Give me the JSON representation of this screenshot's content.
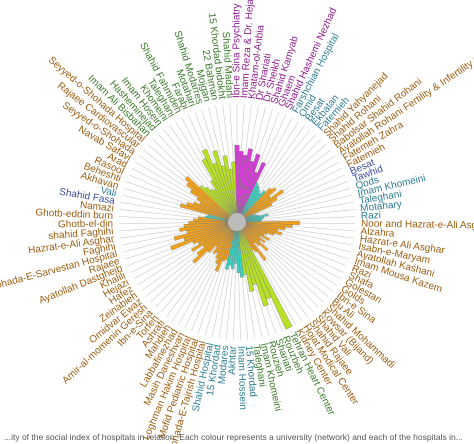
{
  "chart_data": {
    "type": "radial-bar",
    "title": "",
    "grid": true,
    "colors": {
      "Tehran": "#9c5d10",
      "Iran": "#3b7a2a",
      "Shahid Beheshti": "#8d1b8d",
      "Group D": "#2d7e93",
      "Group E": "#3a4d9a"
    },
    "fills": {
      "Tehran": "#f1a11a",
      "Iran": "#b8e027",
      "Shahid Beheshti": "#d63bd6",
      "Group D": "#39d5c4",
      "Group E": "#39d5c4"
    },
    "categories": [
      {
        "label": "Ibn-e Sina Psychiatry",
        "group": "Shahid Beheshti",
        "value": 60
      },
      {
        "label": "Imam Reza & Dr. Hejazi",
        "group": "Shahid Beheshti",
        "value": 55
      },
      {
        "label": "Khatam-ol-Anbia",
        "group": "Shahid Beheshti",
        "value": 52
      },
      {
        "label": "Dr Shariati",
        "group": "Shahid Beheshti",
        "value": 58
      },
      {
        "label": "Dr Sheikh",
        "group": "Shahid Beheshti",
        "value": 48
      },
      {
        "label": "Shahid Kamyab",
        "group": "Shahid Beheshti",
        "value": 55
      },
      {
        "label": "Ghaem",
        "group": "Shahid Beheshti",
        "value": 40
      },
      {
        "label": "Shahid Hashemi Nezhad",
        "group": "Shahid Beheshti",
        "value": 50
      },
      {
        "label": "Farshchian Hospital",
        "group": "Group D",
        "value": 32
      },
      {
        "label": "Omid",
        "group": "Group D",
        "value": 30
      },
      {
        "label": "Besat",
        "group": "Group D",
        "value": 28
      },
      {
        "label": "Ekbatan",
        "group": "Group D",
        "value": 26
      },
      {
        "label": "Fatemieh",
        "group": "Group D",
        "value": 30
      },
      {
        "label": "Shahid Yahyanejad",
        "group": "Tehran",
        "value": 35
      },
      {
        "label": "Shahid Rohani",
        "group": "Tehran",
        "value": 38
      },
      {
        "label": "Babolsar Shahid Rohani",
        "group": "Tehran",
        "value": 30
      },
      {
        "label": "Ayatollah Rohani Fertility & Infertility Center",
        "group": "Tehran",
        "value": 42
      },
      {
        "label": "Fatemeh Zahra",
        "group": "Tehran",
        "value": 34
      },
      {
        "label": "Fatemieh",
        "group": "Tehran",
        "value": 28
      },
      {
        "label": "Besat",
        "group": "Group E",
        "value": 10
      },
      {
        "label": "Tawhid",
        "group": "Group E",
        "value": 12
      },
      {
        "label": "Qods",
        "group": "Group D",
        "value": 14
      },
      {
        "label": "Imam Khomeini",
        "group": "Group D",
        "value": 22
      },
      {
        "label": "Taleghani",
        "group": "Group D",
        "value": 18
      },
      {
        "label": "Motahary",
        "group": "Group D",
        "value": 16
      },
      {
        "label": "Razi",
        "group": "Group D",
        "value": 15
      },
      {
        "label": "Noor and Hazrat-e-Ali Asghar",
        "group": "Tehran",
        "value": 48
      },
      {
        "label": "Alzahra",
        "group": "Tehran",
        "value": 42
      },
      {
        "label": "Hazrat-e Ali Asghar",
        "group": "Tehran",
        "value": 36
      },
      {
        "label": "Isabn-e-Maryam",
        "group": "Tehran",
        "value": 30
      },
      {
        "label": "Ayatollah Kashani",
        "group": "Tehran",
        "value": 34
      },
      {
        "label": "Imam Mousa Kazem",
        "group": "Tehran",
        "value": 28
      },
      {
        "label": "Razi",
        "group": "Tehran",
        "value": 22
      },
      {
        "label": "Shafa",
        "group": "Tehran",
        "value": 20
      },
      {
        "label": "Golestan",
        "group": "Tehran",
        "value": 26
      },
      {
        "label": "Golds",
        "group": "Tehran",
        "value": 18
      },
      {
        "label": "Ibn-e Sina",
        "group": "Tehran",
        "value": 24
      },
      {
        "label": "Bu Ali",
        "group": "Tehran",
        "value": 20
      },
      {
        "label": "Shahid Mohammadi",
        "group": "Tehran",
        "value": 30
      },
      {
        "label": "Kowsar (Bijand)",
        "group": "Tehran",
        "value": 22
      },
      {
        "label": "Shahid Vali",
        "group": "Tehran",
        "value": 18
      },
      {
        "label": "Shahid Rajaee",
        "group": "Tehran",
        "value": 35
      },
      {
        "label": "Hojat Modical Center",
        "group": "Tehran",
        "value": 25
      },
      {
        "label": "Kidney Center",
        "group": "Tehran",
        "value": 22
      },
      {
        "label": "Tehran Heart Center",
        "group": "Iran",
        "value": 95
      },
      {
        "label": "Rouzbeh",
        "group": "Iran",
        "value": 65
      },
      {
        "label": "Shariati",
        "group": "Iran",
        "value": 70
      },
      {
        "label": "Rouzieh",
        "group": "Iran",
        "value": 50
      },
      {
        "label": "Imam Khomeini",
        "group": "Iran",
        "value": 55
      },
      {
        "label": "Taleghani",
        "group": "Iran",
        "value": 40
      },
      {
        "label": "15 Khordad",
        "group": "Group D",
        "value": 42
      },
      {
        "label": "Imam Hossein",
        "group": "Group D",
        "value": 38
      },
      {
        "label": "Akhtar",
        "group": "Group D",
        "value": 30
      },
      {
        "label": "Modares",
        "group": "Group D",
        "value": 35
      },
      {
        "label": "15 Khordad",
        "group": "Group D",
        "value": 32
      },
      {
        "label": "Shahid Hospital",
        "group": "Group D",
        "value": 36
      },
      {
        "label": "Shohada-E-Tajrish Hospital",
        "group": "Tehran",
        "value": 28
      },
      {
        "label": "Mofid Pediatric Hospital",
        "group": "Tehran",
        "value": 30
      },
      {
        "label": "Loghman Hakim Hospital",
        "group": "Tehran",
        "value": 40
      },
      {
        "label": "Masih Daneshvari",
        "group": "Tehran",
        "value": 34
      },
      {
        "label": "Labbafinezhad",
        "group": "Tehran",
        "value": 30
      },
      {
        "label": "Mahdieh",
        "group": "Tehran",
        "value": 26
      },
      {
        "label": "Ashrafi",
        "group": "Tehran",
        "value": 28
      },
      {
        "label": "Torfeh",
        "group": "Tehran",
        "value": 22
      },
      {
        "label": "Ibn-e-Sina",
        "group": "Tehran",
        "value": 30
      },
      {
        "label": "Amir-al-momenin Geresh",
        "group": "Tehran",
        "value": 45
      },
      {
        "label": "Omidvar Ewaz",
        "group": "Tehran",
        "value": 38
      },
      {
        "label": "Zeinabieh",
        "group": "Tehran",
        "value": 30
      },
      {
        "label": "Hafez",
        "group": "Tehran",
        "value": 40
      },
      {
        "label": "Hejazi",
        "group": "Tehran",
        "value": 32
      },
      {
        "label": "Khalili",
        "group": "Tehran",
        "value": 36
      },
      {
        "label": "Ayatollah Dastgheib",
        "group": "Tehran",
        "value": 55
      },
      {
        "label": "Rajaee",
        "group": "Tehran",
        "value": 42
      },
      {
        "label": "Shohada-E-Sarvestan Hospital",
        "group": "Tehran",
        "value": 50
      },
      {
        "label": "Faghihi",
        "group": "Tehran",
        "value": 38
      },
      {
        "label": "Hazrat-e-Ali Asghar",
        "group": "Tehran",
        "value": 44
      },
      {
        "label": "shahid Faghihi",
        "group": "Tehran",
        "value": 40
      },
      {
        "label": "Ghotb-el-din",
        "group": "Tehran",
        "value": 36
      },
      {
        "label": "Ghotb-eddin burn",
        "group": "Tehran",
        "value": 32
      },
      {
        "label": "Namazi",
        "group": "Tehran",
        "value": 28
      },
      {
        "label": "Shahid Fasa",
        "group": "Group E",
        "value": 22
      },
      {
        "label": "Vali",
        "group": "Group D",
        "value": 20
      },
      {
        "label": "Akhavan",
        "group": "Tehran",
        "value": 45
      },
      {
        "label": "Beheshti",
        "group": "Tehran",
        "value": 40
      },
      {
        "label": "Rasool",
        "group": "Tehran",
        "value": 35
      },
      {
        "label": "Arad",
        "group": "Tehran",
        "value": 30
      },
      {
        "label": "Navab Safavi",
        "group": "Tehran",
        "value": 34
      },
      {
        "label": "Seyyed-o-Shohada",
        "group": "Tehran",
        "value": 42
      },
      {
        "label": "Rajaee Cardiovascular",
        "group": "Tehran",
        "value": 48
      },
      {
        "label": "Seyyed-o-Shohada Hospital",
        "group": "Tehran",
        "value": 52
      },
      {
        "label": "Imam Ali Bisbahan",
        "group": "Iran",
        "value": 38
      },
      {
        "label": "Hasheminejad",
        "group": "Iran",
        "value": 34
      },
      {
        "label": "Imam Hosein",
        "group": "Iran",
        "value": 30
      },
      {
        "label": "Khomeini",
        "group": "Iran",
        "value": 28
      },
      {
        "label": "Taleghani",
        "group": "Iran",
        "value": 36
      },
      {
        "label": "Shahid Fahmideh",
        "group": "Iran",
        "value": 55
      },
      {
        "label": "Farabi",
        "group": "Iran",
        "value": 62
      },
      {
        "label": "Motahari",
        "group": "Iran",
        "value": 48
      },
      {
        "label": "Shahid Modarres",
        "group": "Iran",
        "value": 58
      },
      {
        "label": "Mojgan",
        "group": "Iran",
        "value": 44
      },
      {
        "label": "22 Bahman",
        "group": "Iran",
        "value": 52
      },
      {
        "label": "15 Khordad bidokht",
        "group": "Iran",
        "value": 40
      },
      {
        "label": "Shahid Madani",
        "group": "Iran",
        "value": 46
      }
    ],
    "caption": "...ity of the social index of hospitals in relation. Each colour represents a university (network) and each of the hospitals in..."
  }
}
